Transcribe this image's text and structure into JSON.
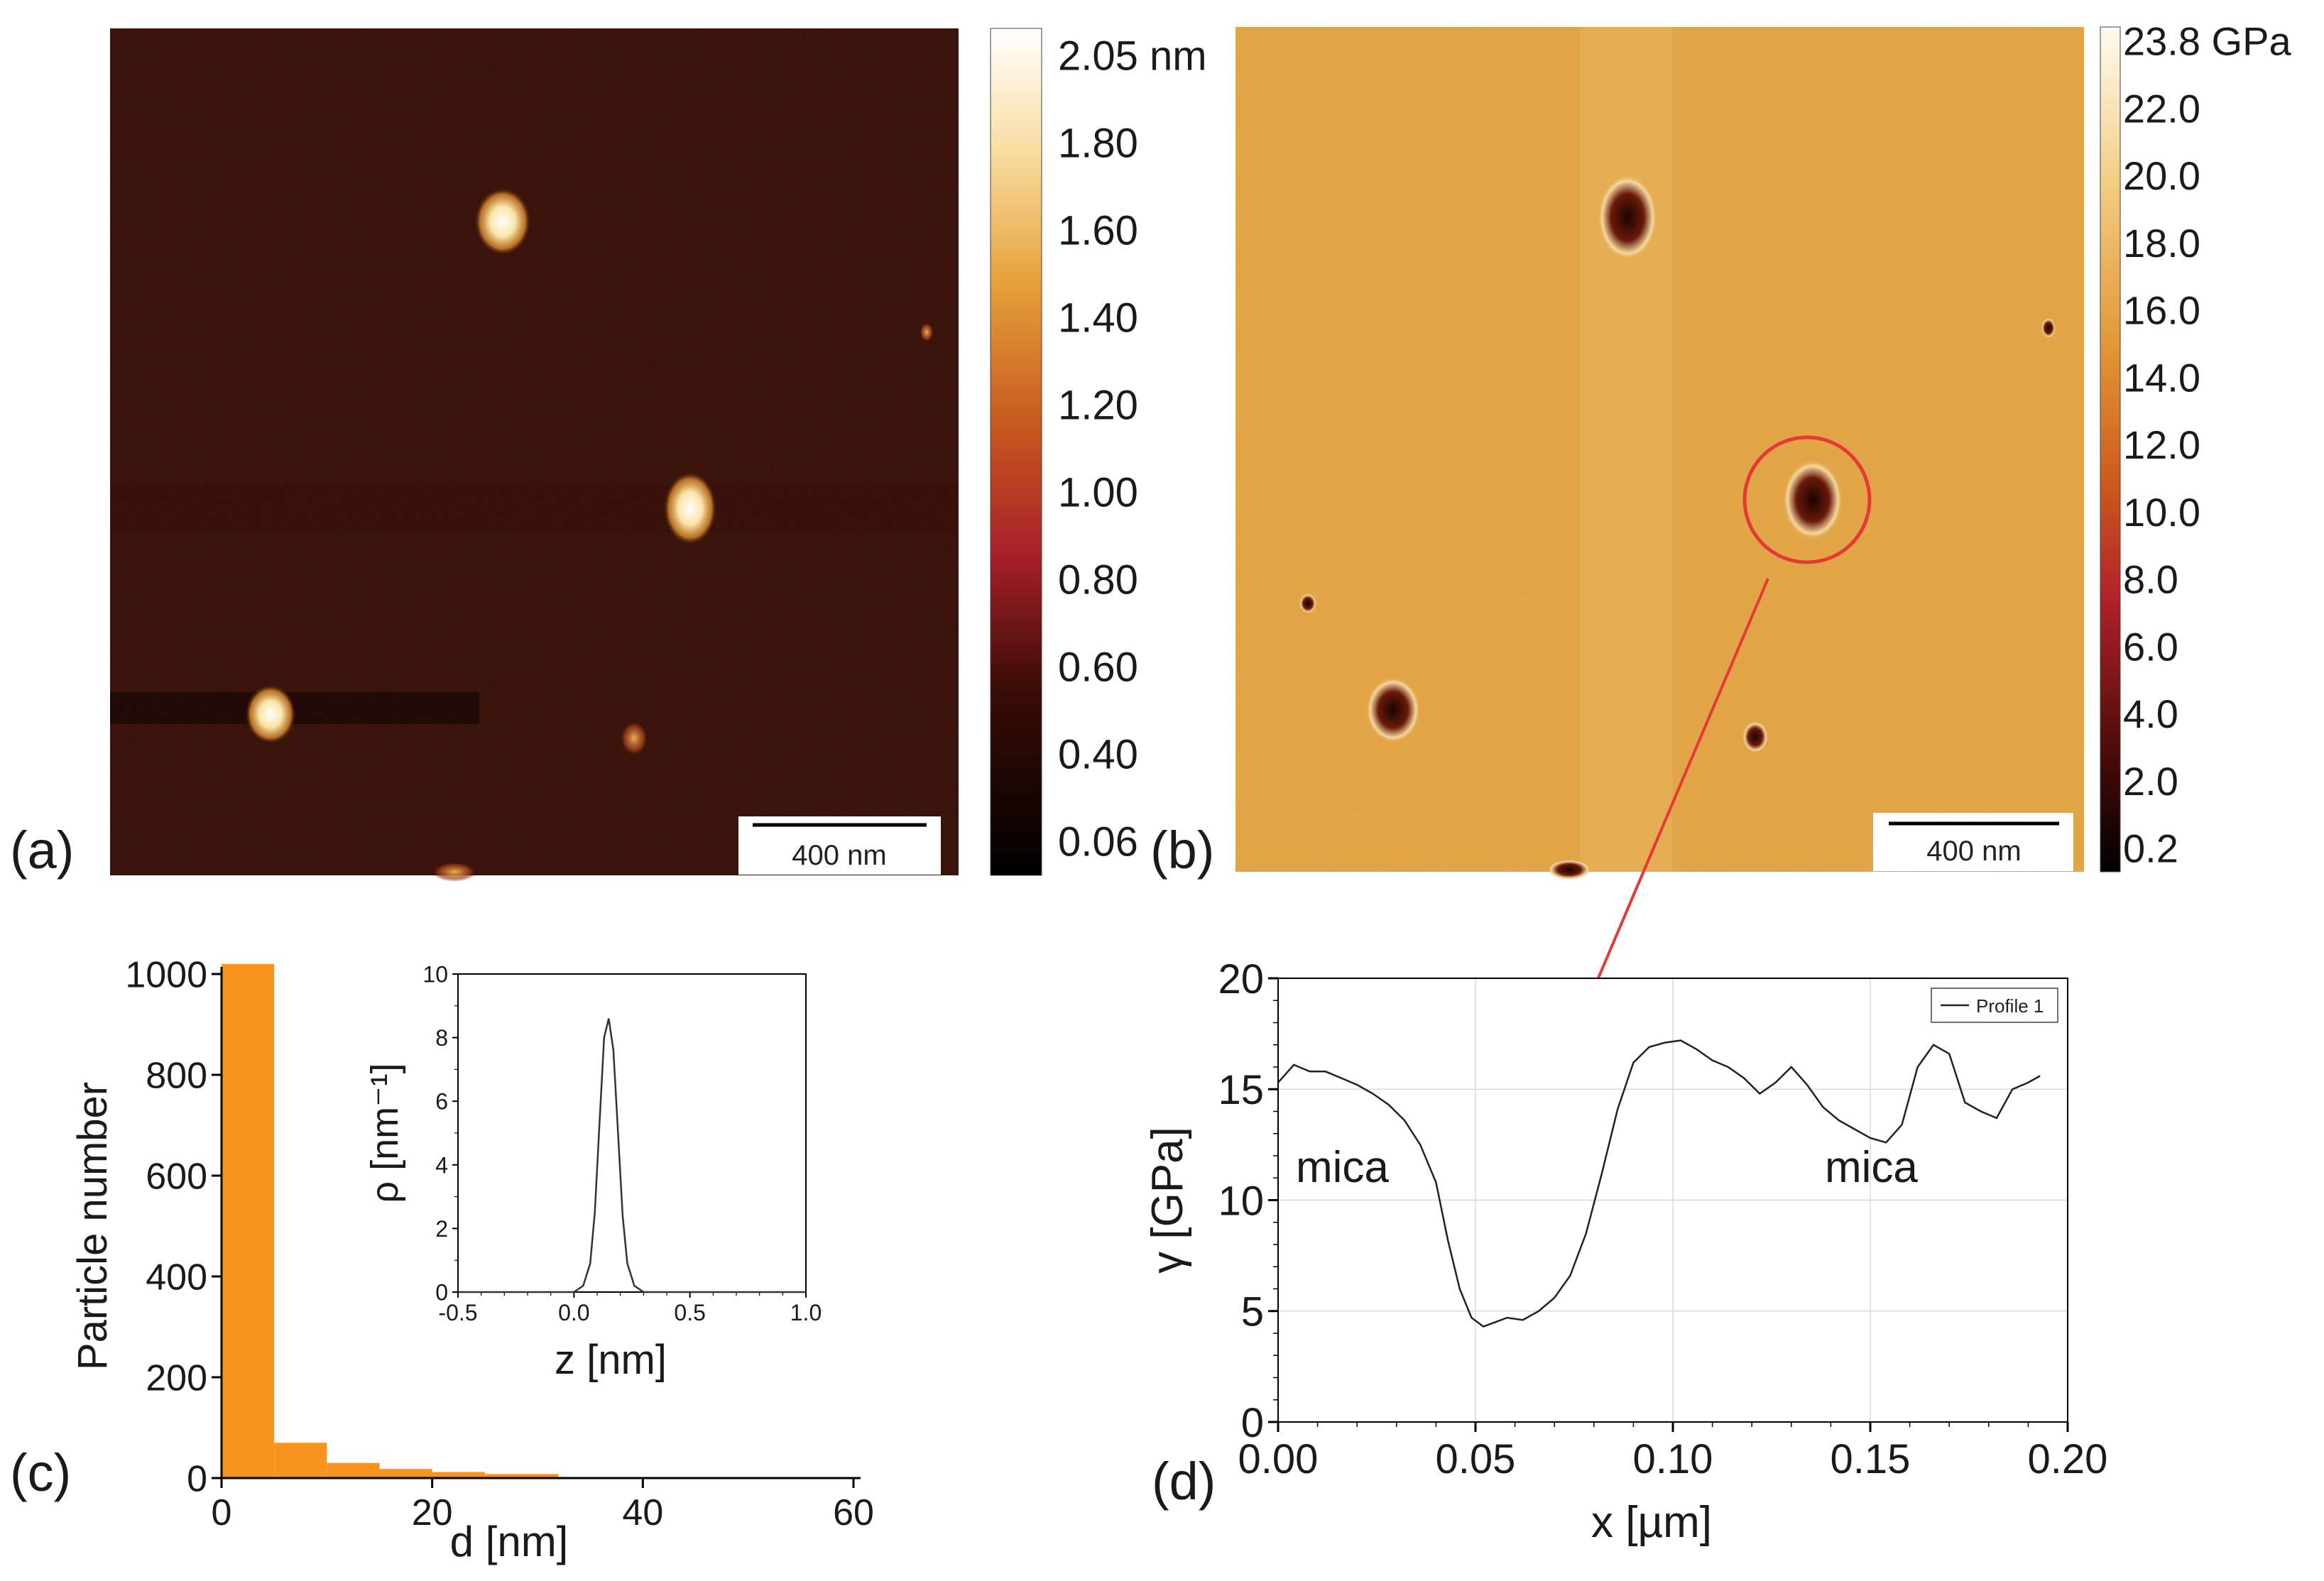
{
  "colors": {
    "height_map": [
      "#000000",
      "#2a0a05",
      "#6b1408",
      "#b5252c",
      "#c9581e",
      "#e8a33a",
      "#f8e6b8",
      "#ffffff"
    ],
    "modulus_map": [
      "#000000",
      "#3a0a05",
      "#8b1414",
      "#c0392b",
      "#d4781e",
      "#e8a33a",
      "#f5d58f",
      "#fff8ec"
    ],
    "bar_fill": "#f7941d",
    "arrow": "#e53935",
    "axis": "#000000"
  },
  "panels": {
    "a": {
      "label": "(a)",
      "scale_bar": "400 nm",
      "colorbar_unit": "nm",
      "colorbar_ticks": [
        "2.05 nm",
        "1.80",
        "1.60",
        "1.40",
        "1.20",
        "1.00",
        "0.80",
        "0.60",
        "0.40",
        "0.06"
      ]
    },
    "b": {
      "label": "(b)",
      "scale_bar": "400 nm",
      "colorbar_ticks": [
        "23.8 GPa",
        "22.0",
        "20.0",
        "18.0",
        "16.0",
        "14.0",
        "12.0",
        "10.0",
        "8.0",
        "6.0",
        "4.0",
        "2.0",
        "0.2"
      ]
    },
    "c": {
      "label": "(c)"
    },
    "d": {
      "label": "(d)"
    }
  },
  "chart_data": [
    {
      "id": "c-histogram",
      "type": "bar",
      "xlabel": "d [nm]",
      "ylabel": "Particle number",
      "xlim": [
        0,
        60
      ],
      "ylim": [
        0,
        1000
      ],
      "xticks": [
        "0",
        "20",
        "40",
        "60"
      ],
      "yticks": [
        "0",
        "200",
        "400",
        "600",
        "800",
        "1000"
      ],
      "bins": [
        {
          "x0": 0,
          "x1": 5,
          "value": 1040
        },
        {
          "x0": 5,
          "x1": 10,
          "value": 70
        },
        {
          "x0": 10,
          "x1": 15,
          "value": 30
        },
        {
          "x0": 15,
          "x1": 20,
          "value": 18
        },
        {
          "x0": 20,
          "x1": 25,
          "value": 12
        },
        {
          "x0": 25,
          "x1": 32,
          "value": 8
        }
      ]
    },
    {
      "id": "c-inset",
      "type": "line",
      "xlabel": "z [nm]",
      "ylabel": "ρ [nm⁻¹]",
      "xlim": [
        -0.5,
        1.0
      ],
      "ylim": [
        0,
        10
      ],
      "xticks": [
        "-0.5",
        "0.0",
        "0.5",
        "1.0"
      ],
      "yticks": [
        "0",
        "2",
        "4",
        "6",
        "8",
        "10"
      ],
      "x": [
        -0.5,
        0.0,
        0.04,
        0.07,
        0.09,
        0.11,
        0.13,
        0.15,
        0.17,
        0.19,
        0.21,
        0.23,
        0.26,
        0.3,
        1.0
      ],
      "y": [
        0,
        0,
        0.2,
        0.9,
        2.5,
        5.3,
        8.0,
        8.6,
        7.6,
        5.0,
        2.4,
        0.9,
        0.2,
        0,
        0
      ]
    },
    {
      "id": "d-profile",
      "type": "line",
      "xlabel": "x [µm]",
      "ylabel": "γ [GPa]",
      "xlim": [
        0,
        0.2
      ],
      "ylim": [
        0,
        20
      ],
      "xticks": [
        "0.00",
        "0.05",
        "0.10",
        "0.15",
        "0.20"
      ],
      "yticks": [
        "0",
        "5",
        "10",
        "15",
        "20"
      ],
      "legend": "Profile 1",
      "annotations": [
        "mica",
        "mica"
      ],
      "series": [
        {
          "name": "Profile 1",
          "x": [
            0.0,
            0.004,
            0.008,
            0.012,
            0.016,
            0.02,
            0.024,
            0.028,
            0.032,
            0.036,
            0.04,
            0.043,
            0.046,
            0.049,
            0.052,
            0.055,
            0.058,
            0.062,
            0.066,
            0.07,
            0.074,
            0.078,
            0.082,
            0.086,
            0.09,
            0.094,
            0.098,
            0.102,
            0.106,
            0.11,
            0.114,
            0.118,
            0.122,
            0.126,
            0.13,
            0.134,
            0.138,
            0.142,
            0.146,
            0.15,
            0.154,
            0.158,
            0.162,
            0.166,
            0.17,
            0.174,
            0.178,
            0.182,
            0.186,
            0.19,
            0.193
          ],
          "y": [
            15.3,
            16.1,
            15.8,
            15.8,
            15.5,
            15.2,
            14.8,
            14.3,
            13.6,
            12.5,
            10.8,
            8.2,
            6.0,
            4.7,
            4.3,
            4.5,
            4.7,
            4.6,
            5.0,
            5.6,
            6.6,
            8.5,
            11.2,
            14.1,
            16.2,
            16.9,
            17.1,
            17.2,
            16.8,
            16.3,
            16.0,
            15.5,
            14.8,
            15.3,
            16.0,
            15.2,
            14.2,
            13.6,
            13.2,
            12.8,
            12.6,
            13.4,
            16.0,
            17.0,
            16.6,
            14.4,
            14.0,
            13.7,
            15.0,
            15.3,
            15.6
          ]
        }
      ]
    }
  ]
}
